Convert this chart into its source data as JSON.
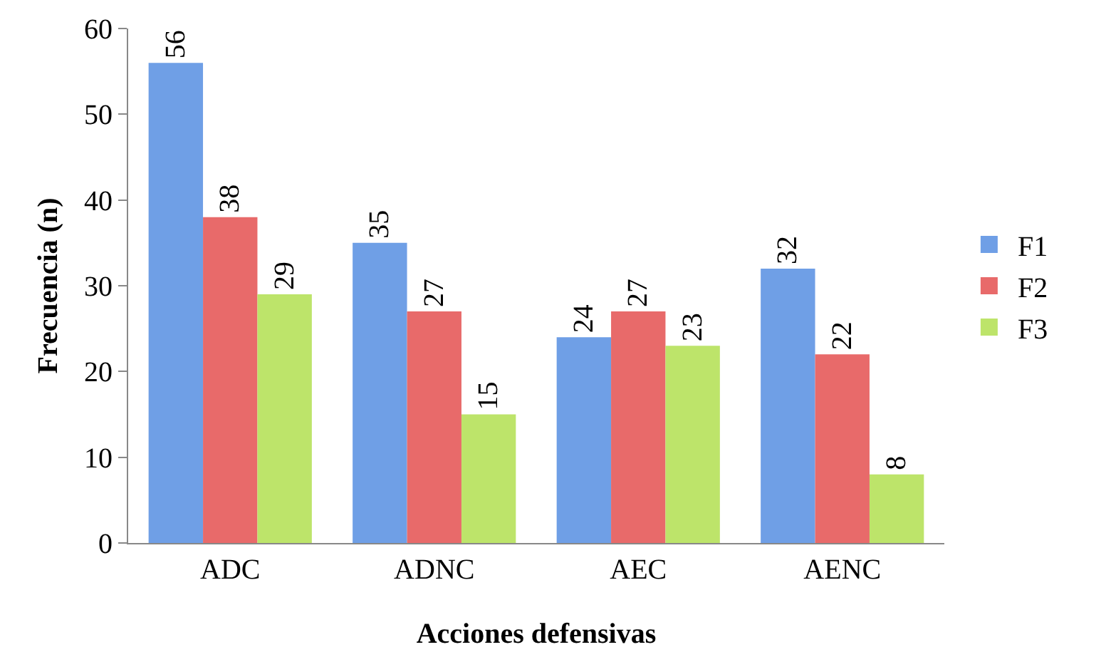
{
  "chart_data": {
    "type": "bar",
    "xlabel": "Acciones defensivas",
    "ylabel": "Frecuencia (n)",
    "categories": [
      "ADC",
      "ADNC",
      "AEC",
      "AENC"
    ],
    "series": [
      {
        "name": "F1",
        "color": "#6f9fe6",
        "values": [
          56,
          35,
          24,
          32
        ]
      },
      {
        "name": "F2",
        "color": "#e86a6a",
        "values": [
          38,
          27,
          27,
          22
        ]
      },
      {
        "name": "F3",
        "color": "#bde46a",
        "values": [
          29,
          15,
          23,
          8
        ]
      }
    ],
    "ylim": [
      0,
      60
    ],
    "yticks": [
      0,
      10,
      20,
      30,
      40,
      50,
      60
    ],
    "grid": false,
    "legend": "right",
    "data_labels": true
  }
}
